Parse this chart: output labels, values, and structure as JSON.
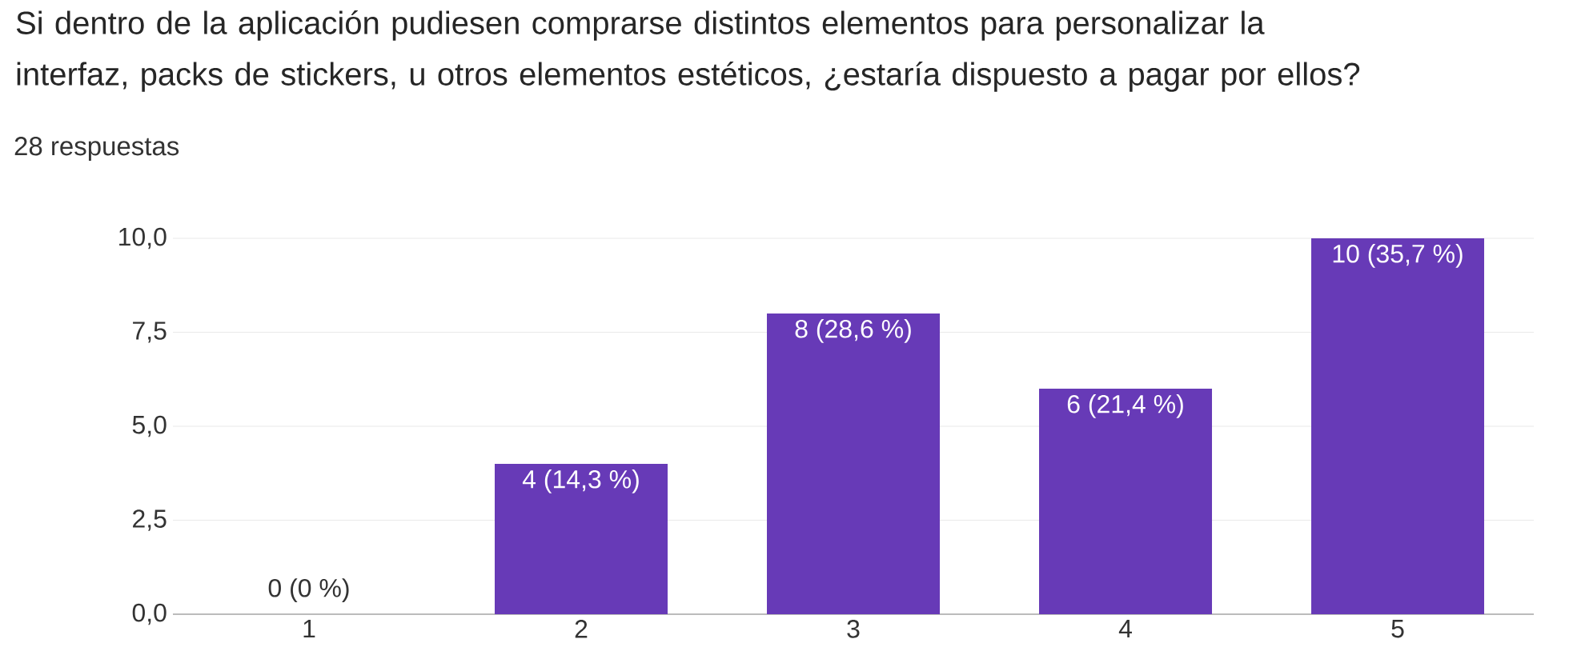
{
  "chart_data": {
    "type": "bar",
    "title": "Si dentro de la aplicación pudiesen comprarse distintos elementos para personalizar la interfaz, packs de stickers, u otros elementos estéticos, ¿estaría dispuesto a pagar por ellos?",
    "subtitle": "28 respuestas",
    "categories": [
      "1",
      "2",
      "3",
      "4",
      "5"
    ],
    "values": [
      0,
      4,
      8,
      6,
      10
    ],
    "value_labels": [
      "0 (0 %)",
      "4 (14,3 %)",
      "8 (28,6 %)",
      "6 (21,4 %)",
      "10 (35,7 %)"
    ],
    "color": "#673ab7",
    "ylim": [
      0,
      10
    ],
    "yticks": [
      {
        "value": 0,
        "label": "0,0"
      },
      {
        "value": 2.5,
        "label": "2,5"
      },
      {
        "value": 5,
        "label": "5,0"
      },
      {
        "value": 7.5,
        "label": "7,5"
      },
      {
        "value": 10,
        "label": "10,0"
      }
    ],
    "grid": "y"
  }
}
